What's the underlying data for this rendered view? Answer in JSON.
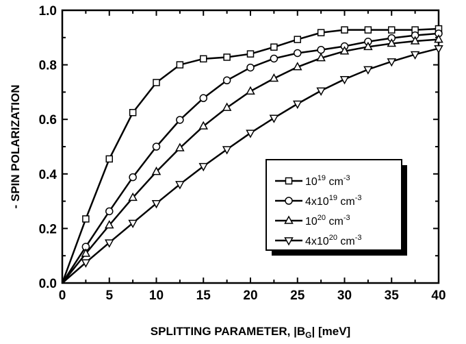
{
  "chart_data": {
    "type": "line",
    "xlabel": "SPLITTING PARAMETER, |B",
    "xlabel_sub": "G",
    "xlabel_suffix": "| [meV]",
    "ylabel": "- SPIN POLARIZATION",
    "xlim": [
      0,
      40
    ],
    "ylim": [
      0.0,
      1.0
    ],
    "x_ticks": [
      0,
      5,
      10,
      15,
      20,
      25,
      30,
      35,
      40
    ],
    "x_tick_labels": [
      "0",
      "5",
      "10",
      "15",
      "20",
      "25",
      "30",
      "35",
      "40"
    ],
    "y_ticks": [
      0.0,
      0.2,
      0.4,
      0.6,
      0.8,
      1.0
    ],
    "y_tick_labels": [
      "0.0",
      "0.2",
      "0.4",
      "0.6",
      "0.8",
      "1.0"
    ],
    "grid": false,
    "legend_position": "center-right",
    "x": [
      0,
      2.5,
      5,
      7.5,
      10,
      12.5,
      15,
      17.5,
      20,
      22.5,
      25,
      27.5,
      30,
      32.5,
      35,
      37.5,
      40
    ],
    "series": [
      {
        "name": "10^19 cm^-3",
        "legend_base": "10",
        "legend_exp": "19",
        "legend_unit": " cm",
        "legend_unit_exp": "-3",
        "marker": "square",
        "values": [
          0.0,
          0.235,
          0.455,
          0.625,
          0.735,
          0.8,
          0.822,
          0.828,
          0.84,
          0.865,
          0.893,
          0.918,
          0.928,
          0.928,
          0.928,
          0.928,
          0.932
        ]
      },
      {
        "name": "4x10^19 cm^-3",
        "legend_base": "4x10",
        "legend_exp": "19",
        "legend_unit": " cm",
        "legend_unit_exp": "-3",
        "marker": "circle",
        "values": [
          0.0,
          0.133,
          0.263,
          0.388,
          0.5,
          0.598,
          0.678,
          0.743,
          0.79,
          0.823,
          0.843,
          0.855,
          0.868,
          0.885,
          0.898,
          0.908,
          0.915
        ]
      },
      {
        "name": "10^20 cm^-3",
        "legend_base": "10",
        "legend_exp": "20",
        "legend_unit": " cm",
        "legend_unit_exp": "-3",
        "marker": "triangle-up",
        "values": [
          0.0,
          0.108,
          0.212,
          0.313,
          0.408,
          0.495,
          0.575,
          0.643,
          0.703,
          0.75,
          0.792,
          0.825,
          0.85,
          0.866,
          0.878,
          0.887,
          0.893
        ]
      },
      {
        "name": "4x10^20 cm^-3",
        "legend_base": "4x10",
        "legend_exp": "20",
        "legend_unit": " cm",
        "legend_unit_exp": "-3",
        "marker": "triangle-down",
        "values": [
          0.0,
          0.075,
          0.148,
          0.22,
          0.292,
          0.362,
          0.428,
          0.49,
          0.55,
          0.605,
          0.657,
          0.705,
          0.747,
          0.783,
          0.812,
          0.838,
          0.86
        ]
      }
    ]
  }
}
